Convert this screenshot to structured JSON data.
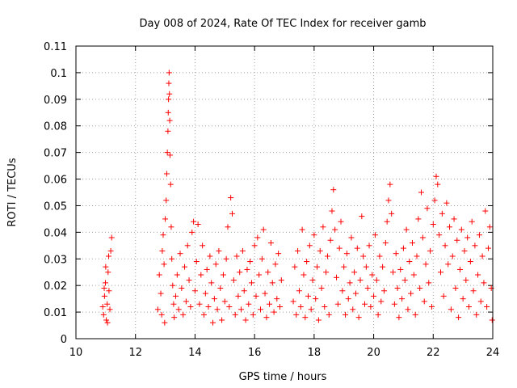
{
  "chart_data": {
    "type": "scatter",
    "title": "Day 008 of 2024, Rate Of TEC Index for receiver gamb",
    "xlabel": "GPS time / hours",
    "ylabel": "ROTI / TECUs",
    "xlim": [
      10,
      24
    ],
    "ylim": [
      0,
      0.11
    ],
    "x_ticks": [
      10,
      12,
      14,
      16,
      18,
      20,
      22,
      24
    ],
    "x_tick_labels": [
      "10",
      "12",
      "14",
      "16",
      "18",
      "20",
      "22",
      "24"
    ],
    "y_ticks": [
      0,
      0.01,
      0.02,
      0.03,
      0.04,
      0.05,
      0.06,
      0.07,
      0.08,
      0.09,
      0.1,
      0.11
    ],
    "y_tick_labels": [
      "0",
      "0.01",
      "0.02",
      "0.03",
      "0.04",
      "0.05",
      "0.06",
      "0.07",
      "0.08",
      "0.09",
      "0.1",
      "0.11"
    ],
    "grid": true,
    "marker": "+",
    "color": "#ff0000",
    "series": [
      {
        "name": "ROTI",
        "points": [
          [
            10.9,
            0.012
          ],
          [
            10.93,
            0.009
          ],
          [
            10.96,
            0.016
          ],
          [
            10.99,
            0.021
          ],
          [
            11.02,
            0.007
          ],
          [
            11.05,
            0.013
          ],
          [
            11.08,
            0.025
          ],
          [
            11.11,
            0.018
          ],
          [
            11.14,
            0.011
          ],
          [
            11.17,
            0.033
          ],
          [
            11.2,
            0.038
          ],
          [
            11.0,
            0.027
          ],
          [
            11.1,
            0.031
          ],
          [
            11.06,
            0.006
          ],
          [
            10.95,
            0.019
          ],
          [
            12.75,
            0.011
          ],
          [
            12.8,
            0.024
          ],
          [
            12.85,
            0.017
          ],
          [
            12.88,
            0.009
          ],
          [
            12.9,
            0.033
          ],
          [
            12.93,
            0.039
          ],
          [
            12.96,
            0.028
          ],
          [
            12.98,
            0.006
          ],
          [
            13.0,
            0.045
          ],
          [
            13.03,
            0.052
          ],
          [
            13.05,
            0.062
          ],
          [
            13.07,
            0.07
          ],
          [
            13.09,
            0.078
          ],
          [
            13.1,
            0.085
          ],
          [
            13.11,
            0.09
          ],
          [
            13.12,
            0.096
          ],
          [
            13.13,
            0.1
          ],
          [
            13.14,
            0.092
          ],
          [
            13.15,
            0.082
          ],
          [
            13.16,
            0.069
          ],
          [
            13.18,
            0.058
          ],
          [
            13.2,
            0.042
          ],
          [
            13.22,
            0.03
          ],
          [
            13.25,
            0.02
          ],
          [
            13.28,
            0.013
          ],
          [
            13.3,
            0.008
          ],
          [
            13.35,
            0.016
          ],
          [
            13.4,
            0.024
          ],
          [
            13.45,
            0.011
          ],
          [
            13.5,
            0.032
          ],
          [
            13.55,
            0.019
          ],
          [
            13.6,
            0.009
          ],
          [
            13.65,
            0.027
          ],
          [
            13.7,
            0.014
          ],
          [
            13.75,
            0.035
          ],
          [
            13.8,
            0.022
          ],
          [
            13.85,
            0.012
          ],
          [
            13.9,
            0.04
          ],
          [
            13.95,
            0.044
          ],
          [
            14.0,
            0.018
          ],
          [
            14.05,
            0.029
          ],
          [
            14.1,
            0.043
          ],
          [
            14.15,
            0.013
          ],
          [
            14.2,
            0.024
          ],
          [
            14.25,
            0.035
          ],
          [
            14.3,
            0.009
          ],
          [
            14.35,
            0.017
          ],
          [
            14.4,
            0.026
          ],
          [
            14.45,
            0.012
          ],
          [
            14.5,
            0.031
          ],
          [
            14.55,
            0.021
          ],
          [
            14.6,
            0.006
          ],
          [
            14.65,
            0.015
          ],
          [
            14.7,
            0.028
          ],
          [
            14.75,
            0.011
          ],
          [
            14.8,
            0.033
          ],
          [
            14.85,
            0.019
          ],
          [
            14.9,
            0.007
          ],
          [
            14.95,
            0.024
          ],
          [
            15.0,
            0.014
          ],
          [
            15.05,
            0.03
          ],
          [
            15.1,
            0.042
          ],
          [
            15.15,
            0.012
          ],
          [
            15.2,
            0.053
          ],
          [
            15.25,
            0.047
          ],
          [
            15.3,
            0.022
          ],
          [
            15.35,
            0.009
          ],
          [
            15.4,
            0.031
          ],
          [
            15.45,
            0.016
          ],
          [
            15.5,
            0.025
          ],
          [
            15.55,
            0.011
          ],
          [
            15.6,
            0.033
          ],
          [
            15.65,
            0.018
          ],
          [
            15.7,
            0.007
          ],
          [
            15.75,
            0.026
          ],
          [
            15.8,
            0.013
          ],
          [
            15.85,
            0.029
          ],
          [
            15.9,
            0.021
          ],
          [
            15.95,
            0.009
          ],
          [
            16.0,
            0.035
          ],
          [
            16.05,
            0.016
          ],
          [
            16.1,
            0.038
          ],
          [
            16.15,
            0.024
          ],
          [
            16.2,
            0.011
          ],
          [
            16.25,
            0.03
          ],
          [
            16.3,
            0.041
          ],
          [
            16.35,
            0.017
          ],
          [
            16.4,
            0.008
          ],
          [
            16.45,
            0.025
          ],
          [
            16.5,
            0.013
          ],
          [
            16.55,
            0.036
          ],
          [
            16.6,
            0.021
          ],
          [
            16.65,
            0.01
          ],
          [
            16.7,
            0.028
          ],
          [
            16.75,
            0.015
          ],
          [
            16.8,
            0.032
          ],
          [
            16.85,
            0.012
          ],
          [
            16.9,
            0.022
          ],
          [
            17.3,
            0.014
          ],
          [
            17.35,
            0.027
          ],
          [
            17.4,
            0.009
          ],
          [
            17.45,
            0.033
          ],
          [
            17.5,
            0.018
          ],
          [
            17.55,
            0.012
          ],
          [
            17.6,
            0.041
          ],
          [
            17.65,
            0.024
          ],
          [
            17.7,
            0.008
          ],
          [
            17.75,
            0.029
          ],
          [
            17.8,
            0.016
          ],
          [
            17.85,
            0.035
          ],
          [
            17.9,
            0.011
          ],
          [
            17.95,
            0.022
          ],
          [
            18.0,
            0.039
          ],
          [
            18.05,
            0.015
          ],
          [
            18.1,
            0.027
          ],
          [
            18.15,
            0.007
          ],
          [
            18.2,
            0.033
          ],
          [
            18.25,
            0.019
          ],
          [
            18.3,
            0.042
          ],
          [
            18.35,
            0.012
          ],
          [
            18.4,
            0.025
          ],
          [
            18.45,
            0.031
          ],
          [
            18.5,
            0.009
          ],
          [
            18.55,
            0.037
          ],
          [
            18.6,
            0.048
          ],
          [
            18.65,
            0.056
          ],
          [
            18.7,
            0.041
          ],
          [
            18.75,
            0.023
          ],
          [
            18.8,
            0.013
          ],
          [
            18.85,
            0.034
          ],
          [
            18.9,
            0.044
          ],
          [
            18.95,
            0.018
          ],
          [
            19.0,
            0.027
          ],
          [
            19.05,
            0.009
          ],
          [
            19.1,
            0.032
          ],
          [
            19.15,
            0.015
          ],
          [
            19.2,
            0.021
          ],
          [
            19.25,
            0.038
          ],
          [
            19.3,
            0.011
          ],
          [
            19.35,
            0.025
          ],
          [
            19.4,
            0.017
          ],
          [
            19.45,
            0.034
          ],
          [
            19.5,
            0.008
          ],
          [
            19.55,
            0.022
          ],
          [
            19.6,
            0.046
          ],
          [
            19.65,
            0.031
          ],
          [
            19.7,
            0.013
          ],
          [
            19.75,
            0.027
          ],
          [
            19.8,
            0.019
          ],
          [
            19.85,
            0.035
          ],
          [
            19.9,
            0.012
          ],
          [
            19.95,
            0.024
          ],
          [
            20.0,
            0.016
          ],
          [
            20.05,
            0.039
          ],
          [
            20.1,
            0.022
          ],
          [
            20.15,
            0.009
          ],
          [
            20.2,
            0.031
          ],
          [
            20.25,
            0.014
          ],
          [
            20.3,
            0.027
          ],
          [
            20.35,
            0.018
          ],
          [
            20.4,
            0.036
          ],
          [
            20.45,
            0.044
          ],
          [
            20.5,
            0.052
          ],
          [
            20.55,
            0.058
          ],
          [
            20.6,
            0.047
          ],
          [
            20.65,
            0.025
          ],
          [
            20.7,
            0.013
          ],
          [
            20.75,
            0.032
          ],
          [
            20.8,
            0.019
          ],
          [
            20.85,
            0.008
          ],
          [
            20.9,
            0.026
          ],
          [
            20.95,
            0.015
          ],
          [
            21.0,
            0.034
          ],
          [
            21.05,
            0.022
          ],
          [
            21.1,
            0.041
          ],
          [
            21.15,
            0.011
          ],
          [
            21.2,
            0.029
          ],
          [
            21.25,
            0.017
          ],
          [
            21.3,
            0.036
          ],
          [
            21.35,
            0.024
          ],
          [
            21.4,
            0.009
          ],
          [
            21.45,
            0.031
          ],
          [
            21.5,
            0.045
          ],
          [
            21.55,
            0.019
          ],
          [
            21.6,
            0.055
          ],
          [
            21.65,
            0.038
          ],
          [
            21.7,
            0.014
          ],
          [
            21.75,
            0.028
          ],
          [
            21.8,
            0.049
          ],
          [
            21.85,
            0.021
          ],
          [
            21.9,
            0.033
          ],
          [
            21.95,
            0.012
          ],
          [
            22.0,
            0.043
          ],
          [
            22.05,
            0.052
          ],
          [
            22.1,
            0.061
          ],
          [
            22.15,
            0.058
          ],
          [
            22.2,
            0.039
          ],
          [
            22.25,
            0.025
          ],
          [
            22.3,
            0.047
          ],
          [
            22.35,
            0.016
          ],
          [
            22.4,
            0.035
          ],
          [
            22.45,
            0.051
          ],
          [
            22.5,
            0.028
          ],
          [
            22.55,
            0.042
          ],
          [
            22.6,
            0.011
          ],
          [
            22.65,
            0.031
          ],
          [
            22.7,
            0.045
          ],
          [
            22.75,
            0.019
          ],
          [
            22.8,
            0.037
          ],
          [
            22.85,
            0.008
          ],
          [
            22.9,
            0.026
          ],
          [
            22.95,
            0.041
          ],
          [
            23.0,
            0.015
          ],
          [
            23.05,
            0.033
          ],
          [
            23.1,
            0.022
          ],
          [
            23.15,
            0.038
          ],
          [
            23.2,
            0.012
          ],
          [
            23.25,
            0.029
          ],
          [
            23.3,
            0.044
          ],
          [
            23.35,
            0.018
          ],
          [
            23.4,
            0.035
          ],
          [
            23.45,
            0.009
          ],
          [
            23.5,
            0.024
          ],
          [
            23.55,
            0.039
          ],
          [
            23.6,
            0.014
          ],
          [
            23.65,
            0.031
          ],
          [
            23.7,
            0.021
          ],
          [
            23.75,
            0.048
          ],
          [
            23.8,
            0.012
          ],
          [
            23.85,
            0.034
          ],
          [
            23.9,
            0.042
          ],
          [
            23.95,
            0.019
          ],
          [
            23.98,
            0.007
          ]
        ]
      }
    ]
  }
}
